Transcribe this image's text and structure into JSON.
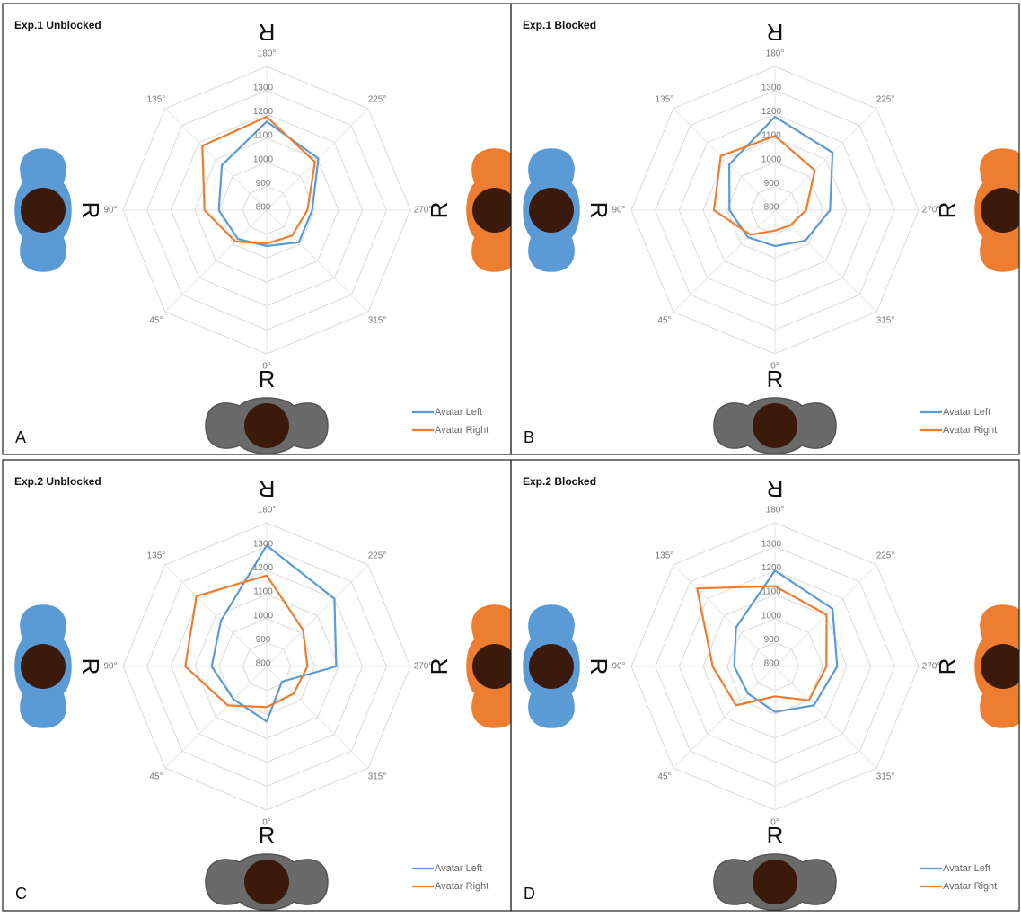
{
  "chart_data": [
    {
      "type": "radar",
      "title": "Exp.1 Unblocked",
      "panel_label": "A",
      "avatar_labels": {
        "top": "R",
        "left": "R",
        "right": "R",
        "bottom": "R"
      },
      "categories": [
        "180°",
        "225°",
        "270°",
        "315°",
        "0°",
        "45°",
        "90°",
        "135°"
      ],
      "rlim": [
        800,
        1400
      ],
      "rticks": [
        800,
        900,
        1000,
        1100,
        1200,
        1300
      ],
      "series": [
        {
          "name": "Avatar Left",
          "color": "#5b9bd5",
          "values": [
            1170,
            1105,
            990,
            990,
            950,
            970,
            1000,
            1065
          ]
        },
        {
          "name": "Avatar Right",
          "color": "#ed7d31",
          "values": [
            1190,
            1085,
            970,
            950,
            940,
            985,
            1060,
            1180
          ]
        }
      ]
    },
    {
      "type": "radar",
      "title": "Exp.1 Blocked",
      "panel_label": "B",
      "avatar_labels": {
        "top": "R",
        "left": "R",
        "right": "R",
        "bottom": "R"
      },
      "categories": [
        "180°",
        "225°",
        "270°",
        "315°",
        "0°",
        "45°",
        "90°",
        "135°"
      ],
      "rlim": [
        800,
        1400
      ],
      "rticks": [
        800,
        900,
        1000,
        1100,
        1200,
        1300
      ],
      "series": [
        {
          "name": "Avatar Left",
          "color": "#5b9bd5",
          "values": [
            1190,
            1140,
            1030,
            980,
            950,
            960,
            990,
            1070
          ]
        },
        {
          "name": "Avatar Right",
          "color": "#ed7d31",
          "values": [
            1110,
            1035,
            930,
            890,
            885,
            945,
            1055,
            1120
          ]
        }
      ]
    },
    {
      "type": "radar",
      "title": "Exp.2 Unblocked",
      "panel_label": "C",
      "avatar_labels": {
        "top": "R",
        "left": "R",
        "right": "R",
        "bottom": "R"
      },
      "categories": [
        "180°",
        "225°",
        "270°",
        "315°",
        "0°",
        "45°",
        "90°",
        "135°"
      ],
      "rlim": [
        800,
        1400
      ],
      "rticks": [
        800,
        900,
        1000,
        1100,
        1200,
        1300
      ],
      "series": [
        {
          "name": "Avatar Left",
          "color": "#5b9bd5",
          "values": [
            1305,
            1200,
            1090,
            890,
            1030,
            995,
            1030,
            1070
          ]
        },
        {
          "name": "Avatar Right",
          "color": "#ed7d31",
          "values": [
            1180,
            1015,
            970,
            960,
            970,
            1030,
            1140,
            1215
          ]
        }
      ]
    },
    {
      "type": "radar",
      "title": "Exp.2 Blocked",
      "panel_label": "D",
      "avatar_labels": {
        "top": "R",
        "left": "R",
        "right": "R",
        "bottom": "R"
      },
      "categories": [
        "180°",
        "225°",
        "270°",
        "315°",
        "0°",
        "45°",
        "90°",
        "135°"
      ],
      "rlim": [
        800,
        1400
      ],
      "rticks": [
        800,
        900,
        1000,
        1100,
        1200,
        1300
      ],
      "series": [
        {
          "name": "Avatar Left",
          "color": "#5b9bd5",
          "values": [
            1200,
            1140,
            1060,
            1030,
            990,
            960,
            970,
            1030
          ]
        },
        {
          "name": "Avatar Right",
          "color": "#ed7d31",
          "values": [
            1135,
            1105,
            1015,
            1000,
            925,
            1030,
            1060,
            1260
          ]
        }
      ]
    }
  ]
}
